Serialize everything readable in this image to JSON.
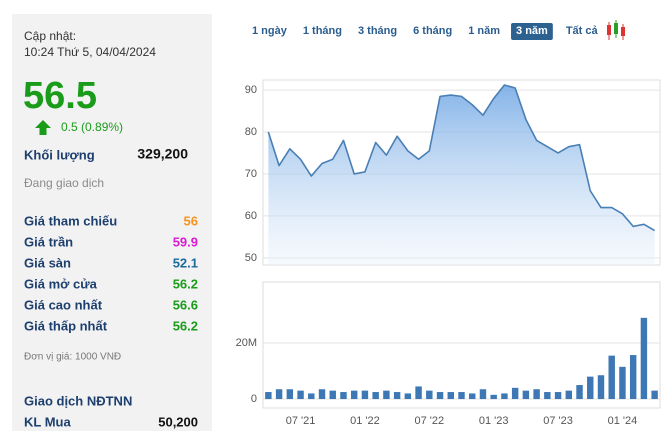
{
  "panel": {
    "update_label": "Cập nhật:",
    "update_time": "10:24 Thứ 5, 04/04/2024",
    "price": "56.5",
    "price_color": "#1a9c1a",
    "change": "0.5 (0.89%)",
    "volume_label": "Khối lượng",
    "volume": "329,200",
    "status": "Đang giao dịch",
    "rows": [
      {
        "label": "Giá tham chiếu",
        "value": "56",
        "color": "#f7941d"
      },
      {
        "label": "Giá trần",
        "value": "59.9",
        "color": "#d91cd1"
      },
      {
        "label": "Giá sàn",
        "value": "52.1",
        "color": "#1a6a9a"
      },
      {
        "label": "Giá mở cửa",
        "value": "56.2",
        "color": "#1a9c1a"
      },
      {
        "label": "Giá cao nhất",
        "value": "56.6",
        "color": "#1a9c1a"
      },
      {
        "label": "Giá thấp nhất",
        "value": "56.2",
        "color": "#1a9c1a"
      }
    ],
    "unit_note": "Đơn vị giá: 1000 VNĐ",
    "foreign_title": "Giao dịch NĐTNN",
    "foreign_rows": [
      {
        "label": "KL Mua",
        "value": "50,200"
      }
    ]
  },
  "tabs": {
    "items": [
      "1 ngày",
      "1 tháng",
      "3 tháng",
      "6 tháng",
      "1 năm",
      "3 năm",
      "Tất cả"
    ],
    "active": 5
  },
  "chart_data": [
    {
      "type": "line",
      "color": "#4a7fb5",
      "categories": [
        null,
        null,
        null,
        null,
        null,
        null,
        null,
        null,
        null,
        null,
        null,
        null,
        null,
        null,
        null,
        null,
        null,
        null,
        null,
        null,
        null,
        null,
        null,
        null,
        null,
        null,
        null,
        null,
        null,
        null,
        null,
        null,
        null,
        null,
        null,
        null,
        null
      ],
      "values": [
        80,
        72,
        76,
        73.5,
        69.5,
        72.5,
        73.5,
        78,
        70,
        70.5,
        77.5,
        74.5,
        79,
        75.5,
        73.5,
        75.5,
        88.5,
        88.8,
        88.5,
        86.5,
        84,
        88,
        91.2,
        90.5,
        83,
        78,
        76.5,
        75,
        76.5,
        77,
        66,
        62,
        62,
        60.5,
        57.5,
        58,
        56.5
      ],
      "ylim": [
        48.3,
        92.4
      ],
      "yticks": [
        50,
        60,
        70,
        80,
        90
      ],
      "grid": true
    },
    {
      "type": "bar",
      "color": "#3d78b5",
      "categories": [
        null,
        null,
        null,
        "07 '21",
        null,
        null,
        null,
        null,
        null,
        "01 '22",
        null,
        null,
        null,
        null,
        null,
        "07 '22",
        null,
        null,
        null,
        null,
        null,
        "01 '23",
        null,
        null,
        null,
        null,
        null,
        "07 '23",
        null,
        null,
        null,
        null,
        null,
        "01 '24",
        null,
        null,
        null
      ],
      "values": [
        2500000,
        3500000,
        3500000,
        3000000,
        2000000,
        3500000,
        3000000,
        2500000,
        3000000,
        3000000,
        2500000,
        3000000,
        2500000,
        2000000,
        4500000,
        3000000,
        2500000,
        2500000,
        2500000,
        2000000,
        3500000,
        1500000,
        2000000,
        4000000,
        3000000,
        3500000,
        2500000,
        2500000,
        3000000,
        5000000,
        8000000,
        8500000,
        15500000,
        11500000,
        15700000,
        29000000,
        3000000
      ],
      "ylim": [
        -3200000,
        41800000
      ],
      "yticks": [
        0,
        {
          "value": 20000000,
          "label": "20M"
        }
      ],
      "grid": true
    }
  ]
}
